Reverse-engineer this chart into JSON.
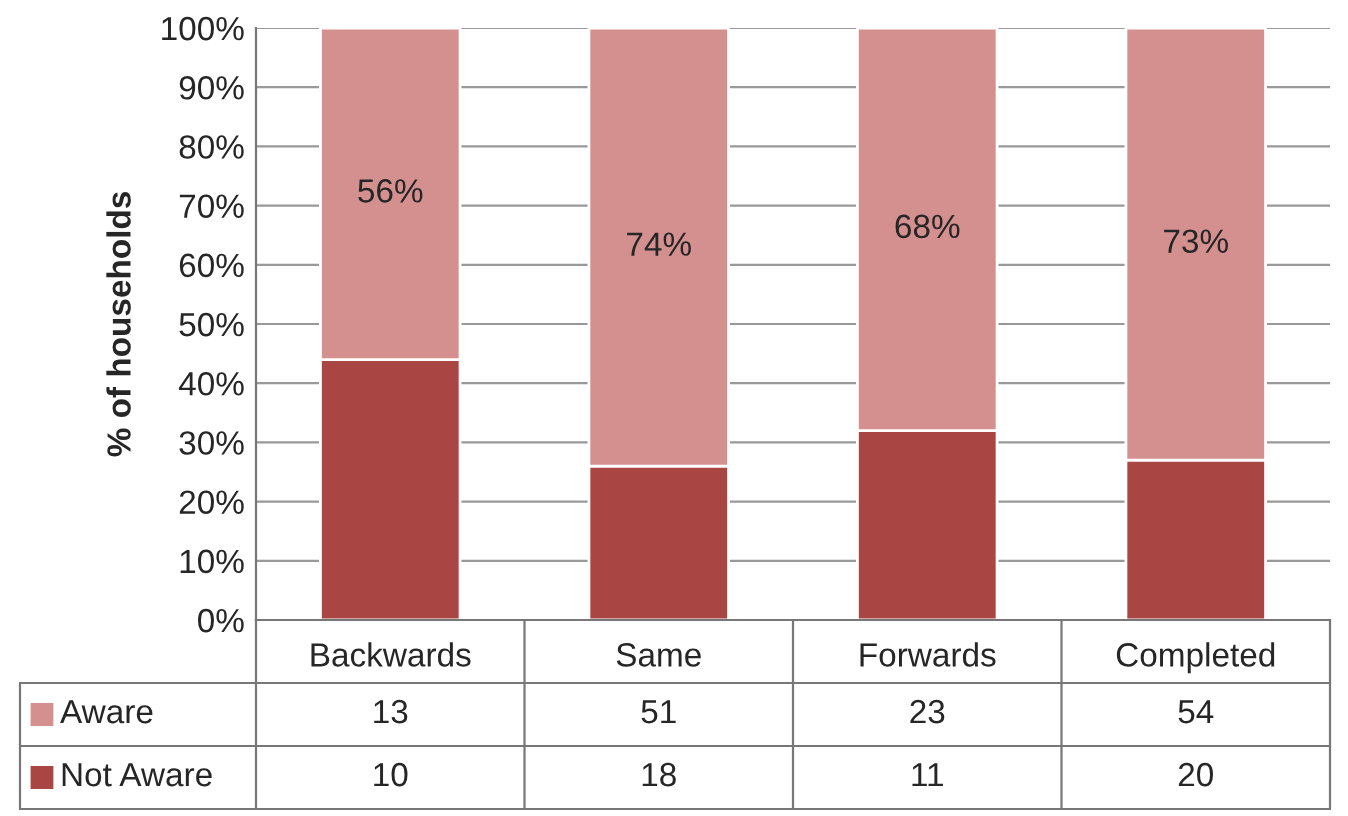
{
  "chart_data": {
    "type": "bar",
    "stacked": true,
    "ylabel": "% of households",
    "categories": [
      "Backwards",
      "Same",
      "Forwards",
      "Completed"
    ],
    "series": [
      {
        "name": "Not Aware",
        "color": "#a94644",
        "values": [
          44,
          26,
          32,
          27
        ]
      },
      {
        "name": "Aware",
        "color": "#d4908f",
        "values": [
          56,
          74,
          68,
          73
        ],
        "value_labels": [
          "56%",
          "74%",
          "68%",
          "73%"
        ]
      }
    ],
    "annotations": [
      "13",
      "51",
      "23",
      "54",
      "10",
      "18",
      "11",
      "20"
    ],
    "ylim": [
      0,
      100
    ],
    "yticks": [
      {
        "value": 0,
        "label": "0%"
      },
      {
        "value": 10,
        "label": "10%"
      },
      {
        "value": 20,
        "label": "20%"
      },
      {
        "value": 30,
        "label": "30%"
      },
      {
        "value": 40,
        "label": "40%"
      },
      {
        "value": 50,
        "label": "50%"
      },
      {
        "value": 60,
        "label": "60%"
      },
      {
        "value": 70,
        "label": "70%"
      },
      {
        "value": 80,
        "label": "80%"
      },
      {
        "value": 90,
        "label": "90%"
      },
      {
        "value": 100,
        "label": "100%"
      }
    ],
    "grid": "y",
    "legend": "bottom"
  }
}
